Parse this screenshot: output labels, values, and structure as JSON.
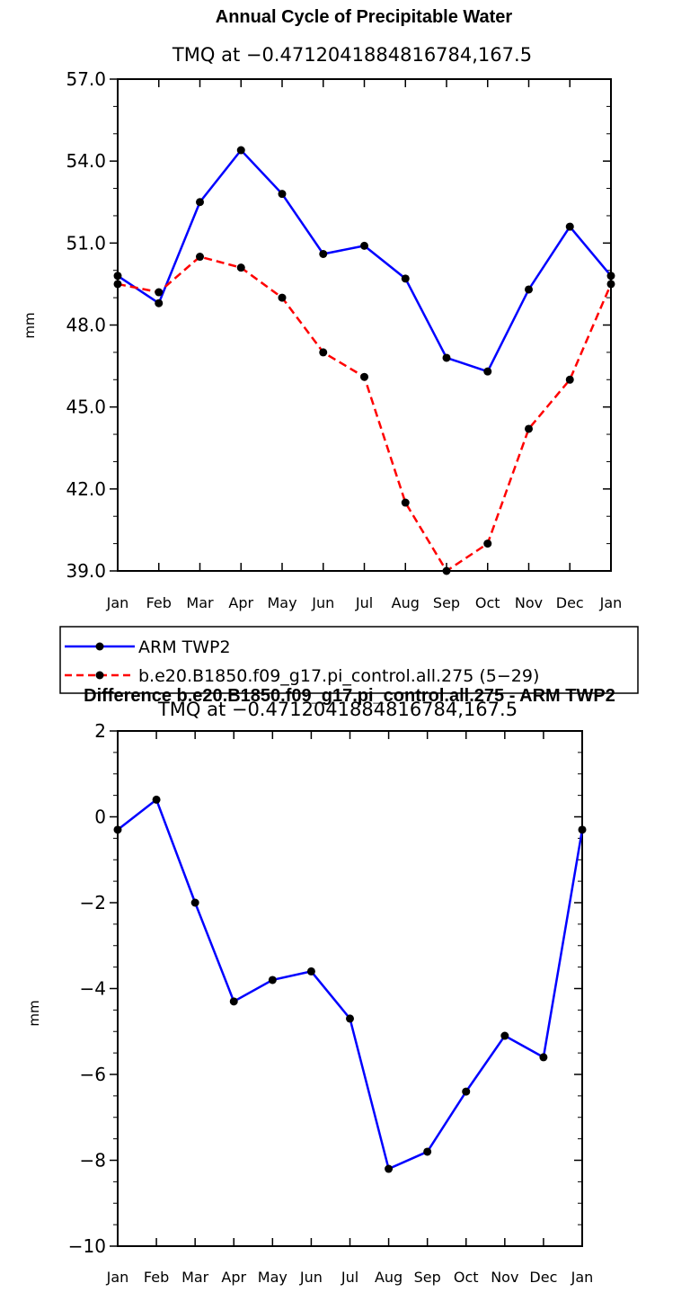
{
  "chart_data": [
    {
      "type": "line",
      "title": "Annual Cycle of Precipitable Water",
      "subtitle": "TMQ at −0.4712041884816784,167.5",
      "xlabel": "",
      "ylabel": "mm",
      "categories": [
        "Jan",
        "Feb",
        "Mar",
        "Apr",
        "May",
        "Jun",
        "Jul",
        "Aug",
        "Sep",
        "Oct",
        "Nov",
        "Dec",
        "Jan"
      ],
      "ylim": [
        39.0,
        57.0
      ],
      "yticks": [
        "39.0",
        "42.0",
        "45.0",
        "48.0",
        "51.0",
        "54.0",
        "57.0"
      ],
      "grid": false,
      "legend": "below",
      "series": [
        {
          "name": "ARM TWP2",
          "color": "#0000ff",
          "dash": "solid",
          "values": [
            49.8,
            48.8,
            52.5,
            54.4,
            52.8,
            50.6,
            50.9,
            49.7,
            46.8,
            46.3,
            49.3,
            51.6,
            49.8
          ]
        },
        {
          "name": "b.e20.B1850.f09_g17.pi_control.all.275 (5−29)",
          "color": "#ff0000",
          "dash": "dashed",
          "values": [
            49.5,
            49.2,
            50.5,
            50.1,
            49.0,
            47.0,
            46.1,
            41.5,
            39.0,
            40.0,
            44.2,
            46.0,
            49.5
          ]
        }
      ]
    },
    {
      "type": "line",
      "title": "Difference b.e20.B1850.f09_g17.pi_control.all.275 - ARM TWP2",
      "subtitle": "TMQ at −0.4712041884816784,167.5",
      "xlabel": "",
      "ylabel": "mm",
      "categories": [
        "Jan",
        "Feb",
        "Mar",
        "Apr",
        "May",
        "Jun",
        "Jul",
        "Aug",
        "Sep",
        "Oct",
        "Nov",
        "Dec",
        "Jan"
      ],
      "ylim": [
        -10,
        2
      ],
      "yticks": [
        "−10",
        "−8",
        "−6",
        "−4",
        "−2",
        "0",
        "2"
      ],
      "grid": false,
      "series": [
        {
          "color": "#0000ff",
          "dash": "solid",
          "values": [
            -0.3,
            0.4,
            -2.0,
            -4.3,
            -3.8,
            -3.6,
            -4.7,
            -8.2,
            -7.8,
            -6.4,
            -5.1,
            -5.6,
            -0.3
          ]
        }
      ]
    }
  ]
}
